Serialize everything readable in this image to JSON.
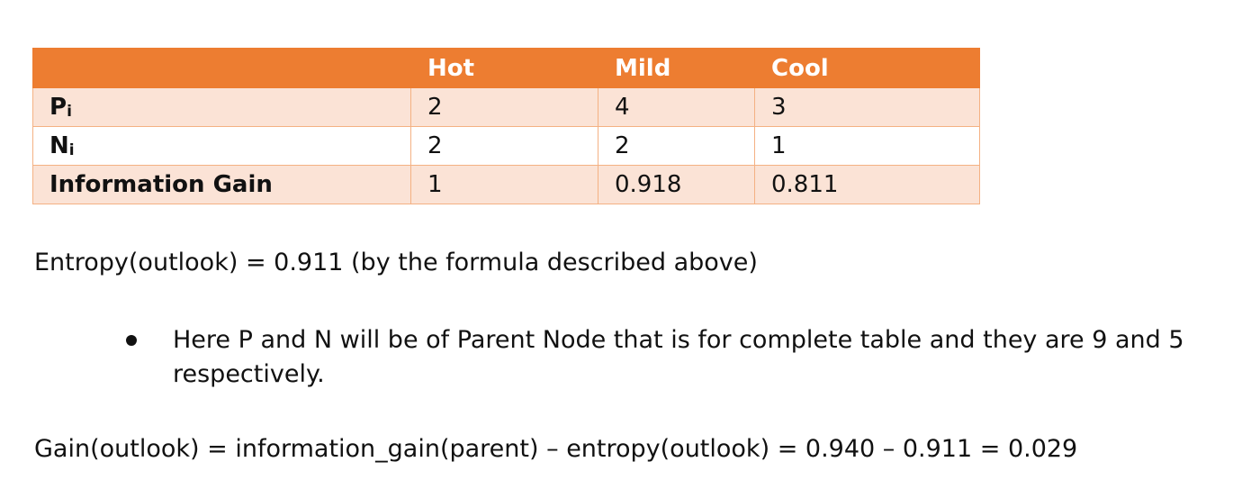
{
  "table": {
    "columns": [
      "",
      "Hot",
      "Mild",
      "Cool"
    ],
    "rows": [
      {
        "label": "P",
        "sub": "i",
        "values": [
          "2",
          "4",
          "3"
        ]
      },
      {
        "label": "N",
        "sub": "i",
        "values": [
          "2",
          "2",
          "1"
        ]
      },
      {
        "label": "Information Gain",
        "sub": "",
        "values": [
          "1",
          "0.918",
          "0.811"
        ]
      }
    ],
    "header_color": "#ed7d31",
    "band_color": "#fbe3d6"
  },
  "entropy_text": "Entropy(outlook) = 0.911 (by the formula described above)",
  "bullet_text": "Here P and N will be of Parent Node that is for complete table and they are 9 and 5 respectively.",
  "gain_text": "Gain(outlook) = information_gain(parent) – entropy(outlook) = 0.940 – 0.911 = 0.029"
}
